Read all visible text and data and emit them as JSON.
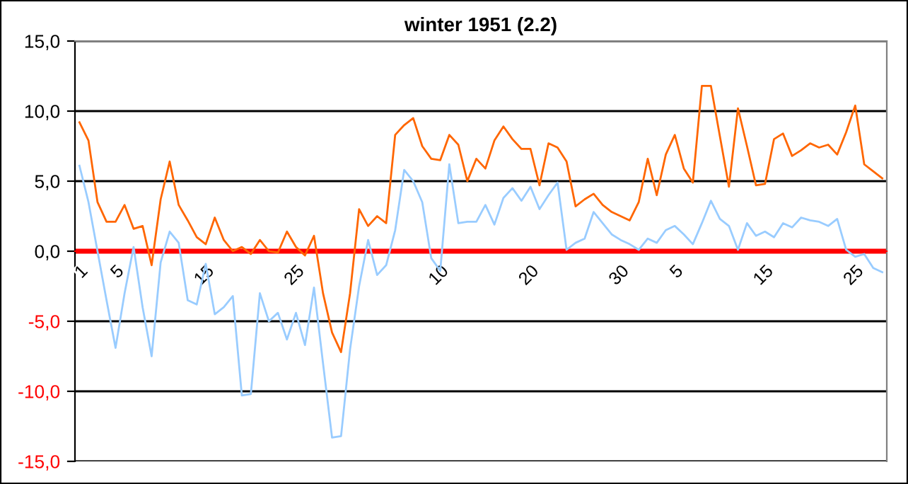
{
  "chart_data": {
    "type": "line",
    "title": "winter 1951 (2.2)",
    "categories": [
      "1",
      null,
      null,
      null,
      "5",
      null,
      null,
      null,
      null,
      null,
      null,
      null,
      null,
      null,
      "15",
      null,
      null,
      null,
      null,
      null,
      null,
      null,
      null,
      null,
      "25",
      null,
      null,
      null,
      null,
      null,
      null,
      null,
      null,
      null,
      null,
      null,
      null,
      null,
      null,
      null,
      "10",
      null,
      null,
      null,
      null,
      null,
      null,
      null,
      null,
      null,
      "20",
      null,
      null,
      null,
      null,
      null,
      null,
      null,
      null,
      null,
      "30",
      null,
      null,
      null,
      null,
      null,
      "5",
      null,
      null,
      null,
      null,
      null,
      null,
      null,
      null,
      null,
      "15",
      null,
      null,
      null,
      null,
      null,
      null,
      null,
      null,
      null,
      "25",
      null,
      null,
      null
    ],
    "series": [
      {
        "color": "#ff6600",
        "values": [
          9.2,
          7.9,
          3.5,
          2.1,
          2.1,
          3.3,
          1.6,
          1.8,
          -1.0,
          3.7,
          6.4,
          3.3,
          2.2,
          1.0,
          0.5,
          2.4,
          0.8,
          0.0,
          0.3,
          -0.2,
          0.8,
          0.0,
          -0.1,
          1.4,
          0.3,
          -0.3,
          1.1,
          -3.0,
          -5.8,
          -7.2,
          -3.0,
          3.0,
          1.8,
          2.5,
          2.0,
          8.3,
          9.0,
          9.5,
          7.5,
          6.6,
          6.5,
          8.3,
          7.6,
          5.0,
          6.6,
          5.9,
          7.9,
          8.9,
          8.0,
          7.3,
          7.3,
          4.7,
          7.7,
          7.4,
          6.4,
          3.2,
          3.7,
          4.1,
          3.3,
          2.8,
          2.5,
          2.2,
          3.5,
          6.6,
          4.0,
          6.9,
          8.3,
          5.9,
          4.9,
          11.8,
          11.8,
          8.2,
          4.6,
          10.2,
          7.5,
          4.7,
          4.8,
          8.0,
          8.4,
          6.8,
          7.2,
          7.7,
          7.4,
          7.6,
          6.9,
          8.5,
          10.4,
          6.2,
          5.7,
          5.2
        ]
      },
      {
        "color": "#99ccff",
        "values": [
          6.1,
          3.5,
          0.0,
          -3.5,
          -6.9,
          -3.0,
          0.3,
          -4.0,
          -7.5,
          -0.8,
          1.4,
          0.6,
          -3.5,
          -3.8,
          -0.9,
          -4.5,
          -4.0,
          -3.2,
          -10.3,
          -10.2,
          -3.0,
          -5.0,
          -4.4,
          -6.3,
          -4.4,
          -6.7,
          -2.6,
          -8.0,
          -13.3,
          -13.2,
          -7.0,
          -2.5,
          0.8,
          -1.7,
          -1.0,
          1.5,
          5.8,
          5.0,
          3.5,
          -0.5,
          -1.4,
          6.2,
          2.0,
          2.1,
          2.1,
          3.3,
          1.9,
          3.8,
          4.5,
          3.6,
          4.6,
          3.0,
          4.0,
          4.9,
          0.1,
          0.6,
          0.9,
          2.8,
          2.0,
          1.2,
          0.8,
          0.5,
          0.1,
          0.9,
          0.6,
          1.5,
          1.8,
          1.2,
          0.5,
          2.0,
          3.6,
          2.3,
          1.8,
          0.1,
          2.0,
          1.1,
          1.4,
          1.0,
          2.0,
          1.7,
          2.4,
          2.2,
          2.1,
          1.8,
          2.3,
          0.1,
          -0.4,
          -0.2,
          -1.2,
          -1.5
        ]
      }
    ],
    "ylim": [
      -15,
      15
    ],
    "yticks": [
      {
        "value": -15,
        "label": "-15,0"
      },
      {
        "value": -10,
        "label": "-10,0"
      },
      {
        "value": -5,
        "label": "-5,0"
      },
      {
        "value": 0,
        "label": "0,0"
      },
      {
        "value": 5,
        "label": "5,0"
      },
      {
        "value": 10,
        "label": "10,0"
      },
      {
        "value": 15,
        "label": "15,0"
      }
    ],
    "grid": "y",
    "ref_lines": [
      {
        "axis": "y",
        "value": 0,
        "color": "#ff0000"
      }
    ],
    "marker": "none",
    "line_style": "solid",
    "legend": false
  }
}
